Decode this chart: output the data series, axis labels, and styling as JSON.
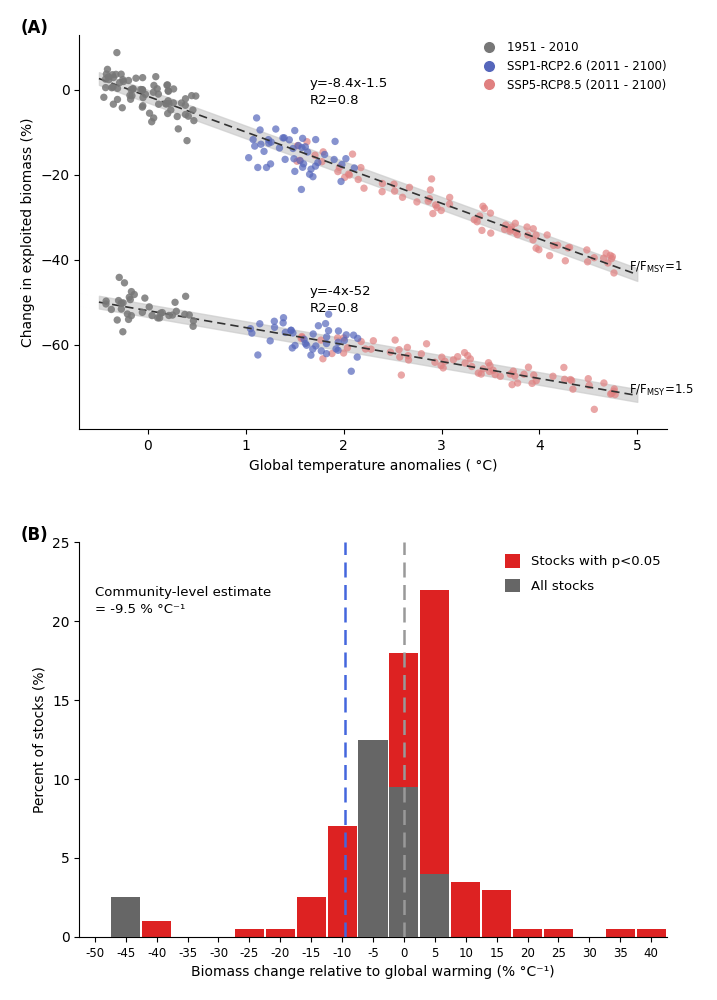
{
  "panel_A": {
    "xlabel": "Global temperature anomalies ( °C)",
    "ylabel": "Change in exploited biomass (%)",
    "line1_eq": "y=-8.4x-1.5\nR2=0.8",
    "line2_eq": "y=-4x-52\nR2=0.8",
    "color_hist": "#777777",
    "color_ssp126": "#5566BB",
    "color_ssp585": "#E08080",
    "legend_hist": "1951 - 2010",
    "legend_ssp126": "SSP1-RCP2.6 (2011 - 2100)",
    "legend_ssp585": "SSP5-RCP8.5 (2011 - 2100)"
  },
  "panel_B": {
    "xlabel": "Biomass change relative to global warming (% °C⁻¹)",
    "ylabel": "Percent of stocks (%)",
    "annotation": "Community-level estimate\n= -9.5 % °C⁻¹",
    "blue_vline": -9.5,
    "gray_vline": 0.0,
    "color_red": "#DD2222",
    "color_gray": "#666666",
    "legend_red": "Stocks with p<0.05",
    "legend_gray": "All stocks",
    "bin_centers": [
      -45,
      -40,
      -35,
      -30,
      -25,
      -20,
      -15,
      -10,
      -5,
      0,
      5,
      10,
      15,
      20,
      25,
      30,
      35,
      40
    ],
    "red_heights": [
      0,
      1.0,
      0,
      0,
      0.5,
      0.5,
      2.5,
      7.0,
      12.0,
      18.0,
      22.0,
      3.5,
      3.0,
      0.5,
      0.5,
      0,
      0.5,
      0.5
    ],
    "gray_heights": [
      2.5,
      0,
      0,
      0,
      0,
      0,
      0,
      0,
      12.5,
      9.5,
      4.0,
      0,
      0,
      0,
      0,
      0,
      0,
      0
    ]
  }
}
